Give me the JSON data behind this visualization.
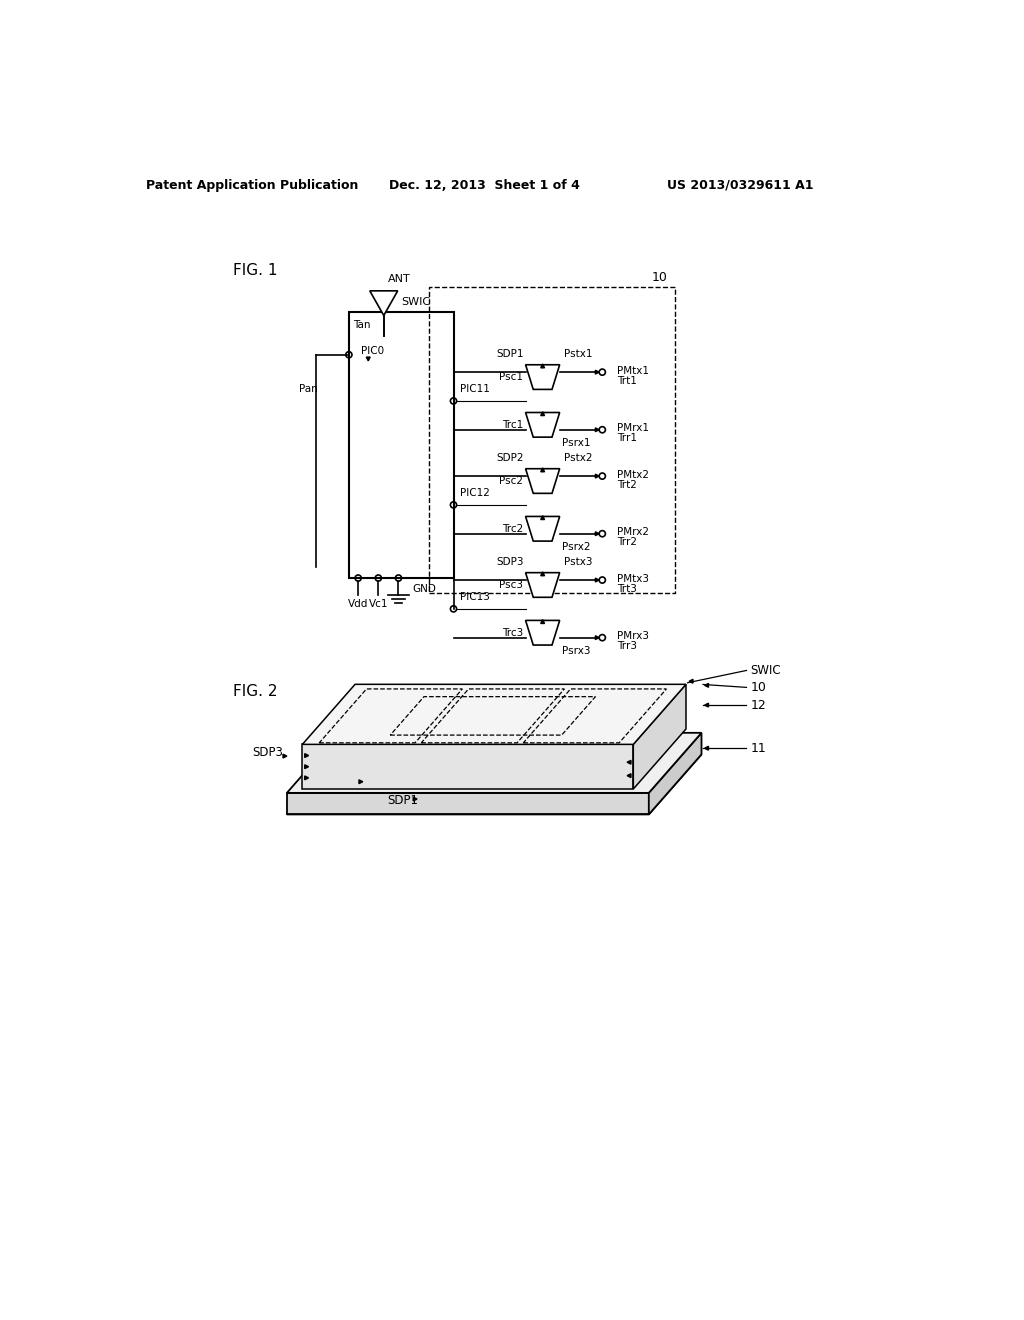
{
  "header_left": "Patent Application Publication",
  "header_mid": "Dec. 12, 2013  Sheet 1 of 4",
  "header_right": "US 2013/0329611 A1",
  "fig1_label": "FIG. 1",
  "fig2_label": "FIG. 2",
  "bg_color": "#ffffff",
  "line_color": "#000000",
  "text_color": "#000000"
}
